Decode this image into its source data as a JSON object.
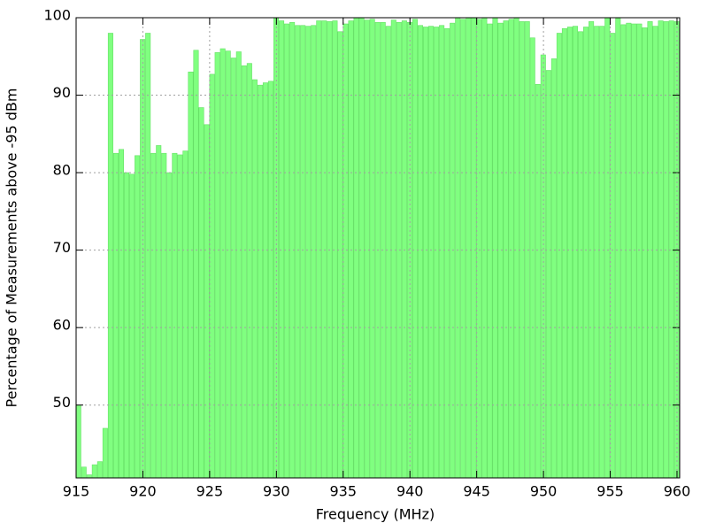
{
  "chart_data": {
    "type": "bar",
    "xlabel": "Frequency (MHz)",
    "ylabel": "Percentage of Measurements above -95 dBm",
    "color": "#80ff80",
    "x": [
      915,
      915.4,
      915.8,
      916.2,
      916.6,
      917,
      917.4,
      917.8,
      918.2,
      918.6,
      919,
      919.4,
      919.8,
      920.2,
      920.6,
      921,
      921.4,
      921.8,
      922.2,
      922.6,
      923,
      923.4,
      923.8,
      924.2,
      924.6,
      925,
      925.4,
      925.8,
      926.2,
      926.6,
      927,
      927.4,
      927.8,
      928.2,
      928.6,
      929,
      929.4,
      929.8,
      930.2,
      930.6,
      931,
      931.4,
      931.8,
      932.2,
      932.6,
      933,
      933.4,
      933.8,
      934.2,
      934.6,
      935,
      935.4,
      935.8,
      936.2,
      936.6,
      937,
      937.4,
      937.8,
      938.2,
      938.6,
      939,
      939.4,
      939.8,
      940.2,
      940.6,
      941,
      941.4,
      941.8,
      942.2,
      942.6,
      943,
      943.4,
      943.8,
      944.2,
      944.6,
      945,
      945.4,
      945.8,
      946.2,
      946.6,
      947,
      947.4,
      947.8,
      948.2,
      948.6,
      949,
      949.4,
      949.8,
      950.2,
      950.6,
      951,
      951.4,
      951.8,
      952.2,
      952.6,
      953,
      953.4,
      953.8,
      954.2,
      954.6,
      955,
      955.4,
      955.8,
      956.2,
      956.6,
      957,
      957.4,
      957.8,
      958.2,
      958.6,
      959,
      959.4,
      959.8
    ],
    "values": [
      50,
      42,
      41,
      42.3,
      42.7,
      47,
      98,
      82.5,
      83,
      80,
      79.8,
      82.2,
      97.2,
      98,
      82.5,
      83.5,
      82.5,
      80,
      82.5,
      82.3,
      82.8,
      93,
      95.8,
      88.4,
      86.2,
      92.7,
      95.5,
      96,
      95.7,
      94.8,
      95.6,
      93.8,
      94.1,
      92,
      91.3,
      91.6,
      91.8,
      100,
      99.6,
      99.2,
      99.4,
      99,
      99,
      98.9,
      99,
      99.6,
      99.6,
      99.5,
      99.6,
      98.2,
      99.2,
      99.6,
      100,
      100,
      99.7,
      99.8,
      99.4,
      99.4,
      98.9,
      99.7,
      99.4,
      99.6,
      99.4,
      99.8,
      99,
      98.8,
      98.9,
      98.8,
      99,
      98.6,
      99.3,
      100,
      99.8,
      100,
      100,
      99.8,
      100,
      99.2,
      100,
      99.3,
      99.6,
      99.8,
      100,
      99.5,
      99.5,
      97.4,
      91.4,
      95.2,
      93.2,
      94.7,
      98,
      98.6,
      98.8,
      98.9,
      98.2,
      98.8,
      99.5,
      98.9,
      98.9,
      100,
      98,
      99.9,
      99.1,
      99.3,
      99.2,
      99.2,
      98.7,
      99.5,
      98.9,
      99.6,
      99.5,
      99.6,
      99.5
    ],
    "bar_width": 0.4,
    "xlim": [
      915,
      960.2
    ],
    "xticks": [
      915,
      920,
      925,
      930,
      935,
      940,
      945,
      950,
      955,
      960
    ],
    "ylim": [
      40.6,
      100
    ],
    "yticks": [
      50,
      60,
      70,
      80,
      90,
      100
    ],
    "grid": true
  }
}
